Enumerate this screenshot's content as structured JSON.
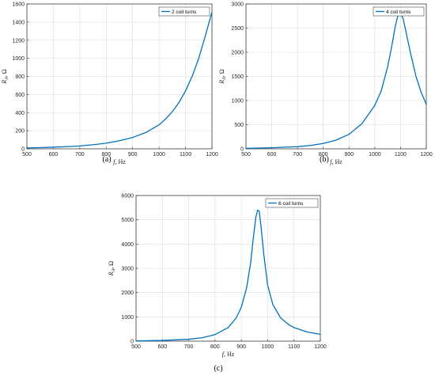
{
  "chart_data": [
    {
      "type": "line",
      "caption": "(a)",
      "xlabel_var": "f",
      "xlabel_unit": ", Hz",
      "ylabel_var": "R",
      "ylabel_sub": "A",
      "ylabel_unit": ", Ω",
      "xlim": [
        500,
        1200
      ],
      "ylim": [
        0,
        1600
      ],
      "xticks": [
        500,
        600,
        700,
        800,
        900,
        1000,
        1100,
        1200
      ],
      "yticks": [
        0,
        200,
        400,
        600,
        800,
        1000,
        1200,
        1400,
        1600
      ],
      "grid": true,
      "legend_position": "top-right",
      "series": [
        {
          "name": "2 coil turns",
          "color": "#0072BD",
          "x": [
            500,
            550,
            600,
            650,
            700,
            750,
            800,
            850,
            900,
            950,
            1000,
            1025,
            1050,
            1075,
            1100,
            1125,
            1150,
            1175,
            1200
          ],
          "y": [
            10,
            13,
            18,
            24,
            32,
            45,
            62,
            90,
            125,
            180,
            265,
            330,
            410,
            510,
            640,
            800,
            1000,
            1250,
            1510
          ]
        }
      ]
    },
    {
      "type": "line",
      "caption": "(b)",
      "xlabel_var": "f",
      "xlabel_unit": ", Hz",
      "ylabel_var": "R",
      "ylabel_sub": "A",
      "ylabel_unit": ", Ω",
      "xlim": [
        500,
        1200
      ],
      "ylim": [
        0,
        3000
      ],
      "xticks": [
        500,
        600,
        700,
        800,
        900,
        1000,
        1100,
        1200
      ],
      "yticks": [
        0,
        500,
        1000,
        1500,
        2000,
        2500,
        3000
      ],
      "grid": true,
      "legend_position": "top-right",
      "series": [
        {
          "name": "4 coil turns",
          "color": "#0072BD",
          "x": [
            500,
            600,
            700,
            750,
            800,
            850,
            900,
            950,
            1000,
            1025,
            1050,
            1065,
            1080,
            1090,
            1100,
            1110,
            1120,
            1140,
            1160,
            1180,
            1200
          ],
          "y": [
            10,
            22,
            45,
            70,
            110,
            180,
            300,
            520,
            900,
            1200,
            1700,
            2100,
            2550,
            2760,
            2790,
            2700,
            2450,
            1950,
            1500,
            1170,
            920
          ]
        }
      ]
    },
    {
      "type": "line",
      "caption": "(c)",
      "xlabel_var": "f",
      "xlabel_unit": ", Hz",
      "ylabel_var": "R",
      "ylabel_sub": "A",
      "ylabel_unit": ", Ω",
      "xlim": [
        500,
        1200
      ],
      "ylim": [
        0,
        6000
      ],
      "xticks": [
        500,
        600,
        700,
        800,
        900,
        1000,
        1100,
        1200
      ],
      "yticks": [
        0,
        1000,
        2000,
        3000,
        4000,
        5000,
        6000
      ],
      "grid": true,
      "legend_position": "top-right",
      "series": [
        {
          "name": "6 coil turns",
          "color": "#0072BD",
          "x": [
            500,
            600,
            700,
            750,
            800,
            850,
            880,
            900,
            920,
            935,
            945,
            955,
            962,
            968,
            975,
            985,
            1000,
            1020,
            1050,
            1080,
            1100,
            1150,
            1200
          ],
          "y": [
            10,
            30,
            80,
            140,
            270,
            560,
            950,
            1400,
            2200,
            3200,
            4200,
            5100,
            5400,
            5350,
            4700,
            3600,
            2300,
            1500,
            950,
            680,
            560,
            380,
            280
          ]
        }
      ]
    }
  ]
}
